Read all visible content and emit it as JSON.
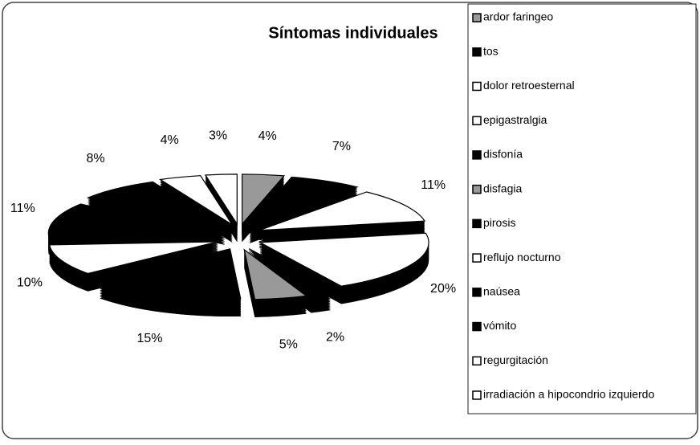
{
  "chart_data": {
    "type": "pie",
    "title": "Síntomas individuales",
    "categories": [
      "ardor faringeo",
      "tos",
      "dolor retroesternal",
      "epigastralgia",
      "disfonía",
      "disfagia",
      "pirosis",
      "reflujo nocturno",
      "naúsea",
      "vómito",
      "regurgitación",
      "irradiación a hipocondrio izquierdo"
    ],
    "values": [
      4,
      7,
      11,
      20,
      2,
      5,
      15,
      10,
      11,
      8,
      4,
      3
    ],
    "value_labels": [
      "4%",
      "7%",
      "11%",
      "20%",
      "2%",
      "5%",
      "15%",
      "10%",
      "11%",
      "8%",
      "4%",
      "3%"
    ],
    "colors": [
      "#999999",
      "#000000",
      "#ffffff",
      "#ffffff",
      "#000000",
      "#999999",
      "#000000",
      "#ffffff",
      "#000000",
      "#000000",
      "#ffffff",
      "#ffffff"
    ],
    "legend": "right"
  }
}
